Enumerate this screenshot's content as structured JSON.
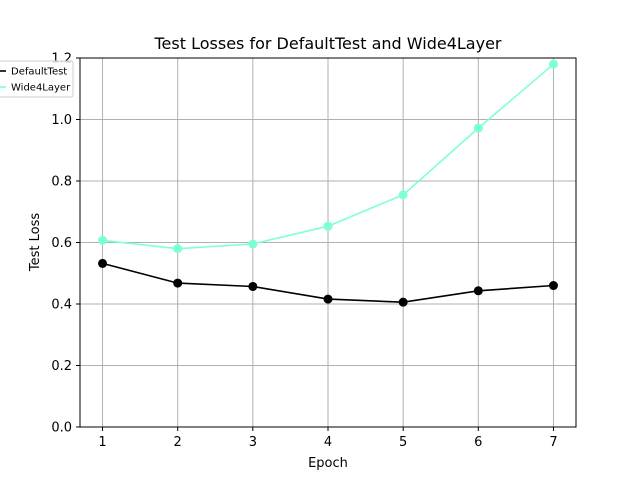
{
  "chart_data": {
    "type": "line",
    "title": "Test Losses for DefaultTest and Wide4Layer",
    "xlabel": "Epoch",
    "ylabel": "Test Loss",
    "x": [
      1,
      2,
      3,
      4,
      5,
      6,
      7
    ],
    "xlim": [
      0.7,
      7.3
    ],
    "ylim": [
      0.0,
      1.2
    ],
    "yticks": [
      "0.0",
      "0.2",
      "0.4",
      "0.6",
      "0.8",
      "1.0",
      "1.2"
    ],
    "xticks": [
      "1",
      "2",
      "3",
      "4",
      "5",
      "6",
      "7"
    ],
    "grid": true,
    "legend_position": "top-left",
    "series": [
      {
        "name": "DefaultTest",
        "color": "#000000",
        "marker": "circle",
        "values": [
          0.532,
          0.468,
          0.457,
          0.416,
          0.406,
          0.443,
          0.46
        ]
      },
      {
        "name": "Wide4Layer",
        "color": "#7fffd4",
        "marker": "circle",
        "values": [
          0.607,
          0.58,
          0.595,
          0.653,
          0.755,
          0.972,
          1.18
        ]
      }
    ]
  }
}
